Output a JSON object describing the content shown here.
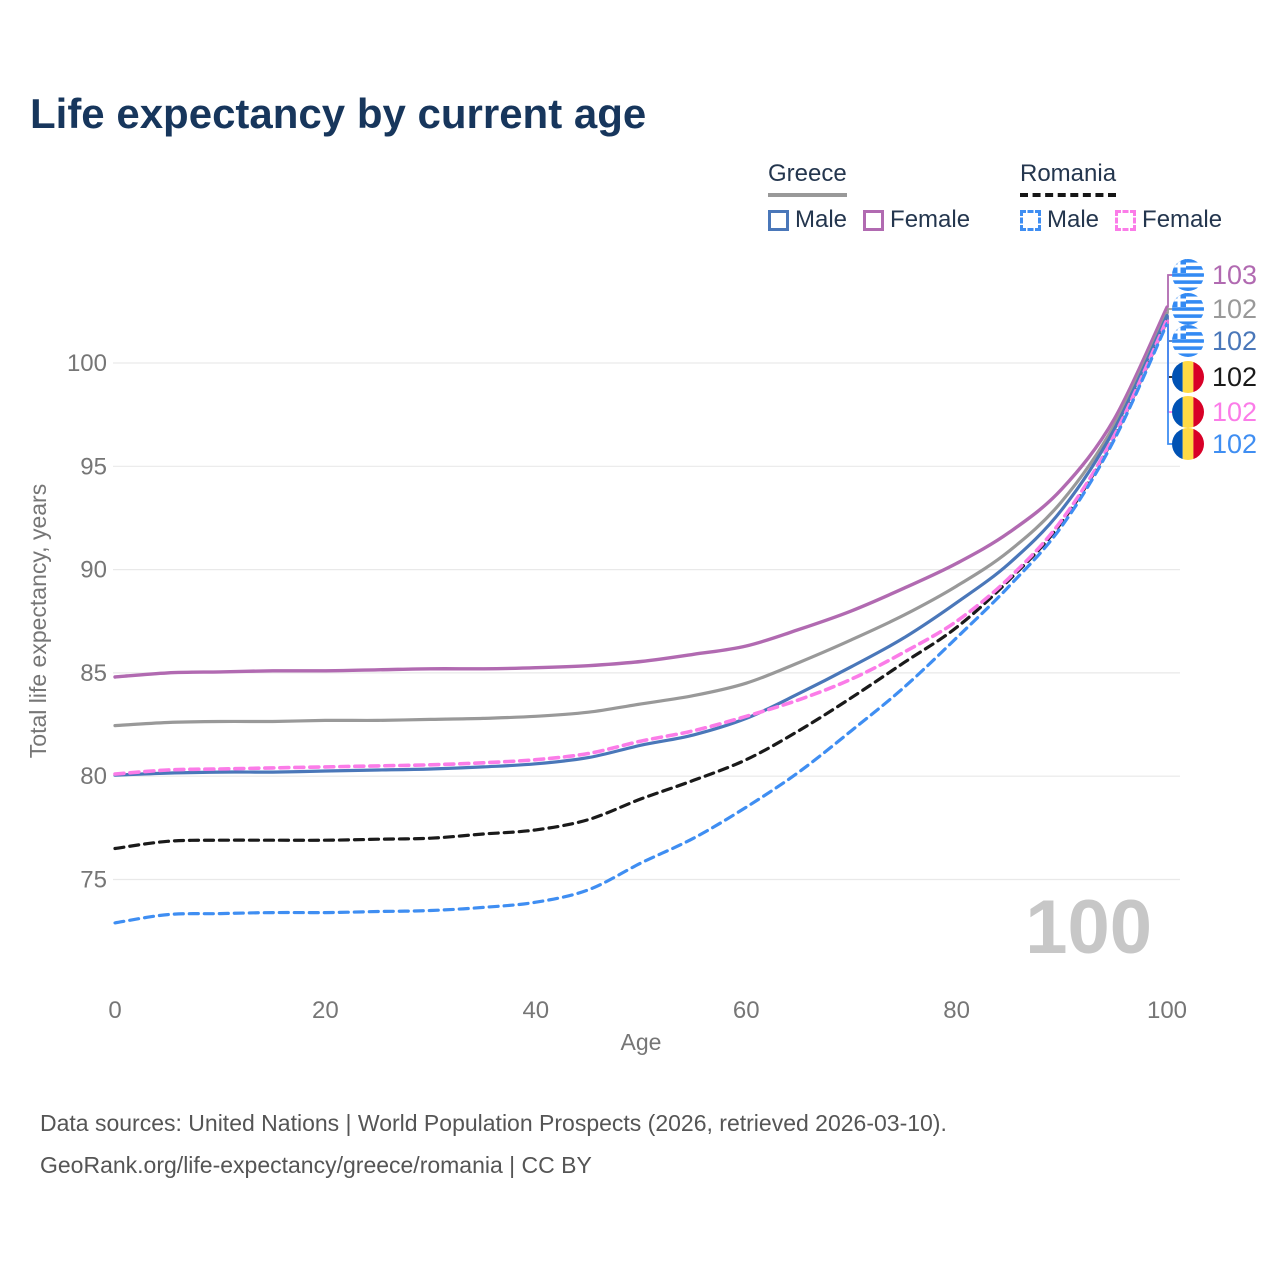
{
  "title": "Life expectancy by current age",
  "legend": {
    "groups": [
      {
        "country": "Greece",
        "items": [
          {
            "label": "Male"
          },
          {
            "label": "Female"
          }
        ]
      },
      {
        "country": "Romania",
        "items": [
          {
            "label": "Male"
          },
          {
            "label": "Female"
          }
        ]
      }
    ]
  },
  "watermark": "100",
  "colors": {
    "title": "#17365c",
    "axis_text": "#767676",
    "grid": "#e9e9e9",
    "watermark": "#c7c7c7",
    "footer_text": "#555555",
    "greece_female": "#b16ab1",
    "greece_total": "#999999",
    "greece_male": "#4a77b9",
    "romania_total": "#1a1a1a",
    "romania_female": "#fb7ce8",
    "romania_male": "#3f8ef2"
  },
  "chart_data": {
    "type": "line",
    "title": "Life expectancy by current age",
    "xlabel": "Age",
    "ylabel": "Total life expectancy, years",
    "x": [
      0,
      5,
      10,
      15,
      20,
      25,
      30,
      35,
      40,
      45,
      50,
      55,
      60,
      65,
      70,
      75,
      80,
      85,
      90,
      95,
      100
    ],
    "xticks": [
      0,
      20,
      40,
      60,
      80,
      100
    ],
    "yticks": [
      75,
      80,
      85,
      90,
      95,
      100
    ],
    "xlim": [
      0,
      100
    ],
    "ylim": [
      72,
      103.5
    ],
    "grid": true,
    "legend_position": "top-right",
    "series": [
      {
        "name": "Greece Female",
        "country": "Greece",
        "sex": "Female",
        "style": "solid",
        "color": "#b16ab1",
        "width": 3.4,
        "flag": "greece",
        "end_label": "103",
        "values": [
          84.8,
          85.0,
          85.05,
          85.1,
          85.1,
          85.15,
          85.2,
          85.2,
          85.25,
          85.35,
          85.55,
          85.9,
          86.3,
          87.1,
          88.0,
          89.1,
          90.3,
          91.8,
          93.9,
          97.3,
          102.7
        ]
      },
      {
        "name": "Greece Both sexes",
        "country": "Greece",
        "sex": "Both",
        "style": "solid",
        "color": "#999999",
        "width": 3.2,
        "flag": "greece",
        "end_label": "102",
        "values": [
          82.45,
          82.6,
          82.65,
          82.65,
          82.7,
          82.7,
          82.75,
          82.8,
          82.9,
          83.1,
          83.5,
          83.9,
          84.5,
          85.5,
          86.6,
          87.8,
          89.2,
          90.9,
          93.3,
          97.0,
          102.4
        ]
      },
      {
        "name": "Greece Male",
        "country": "Greece",
        "sex": "Male",
        "style": "solid",
        "color": "#4a77b9",
        "width": 3.2,
        "flag": "greece",
        "end_label": "102",
        "values": [
          80.05,
          80.15,
          80.2,
          80.2,
          80.25,
          80.3,
          80.35,
          80.45,
          80.6,
          80.9,
          81.5,
          82.0,
          82.8,
          84.0,
          85.3,
          86.7,
          88.4,
          90.3,
          92.9,
          96.8,
          102.3
        ]
      },
      {
        "name": "Romania Both sexes",
        "country": "Romania",
        "sex": "Both",
        "style": "dashed",
        "color": "#1a1a1a",
        "width": 3.2,
        "flag": "romania",
        "end_label": "102",
        "values": [
          76.5,
          76.85,
          76.9,
          76.9,
          76.9,
          76.95,
          77.0,
          77.2,
          77.4,
          77.9,
          78.9,
          79.8,
          80.8,
          82.2,
          83.8,
          85.5,
          87.2,
          89.5,
          92.3,
          96.45,
          102.05
        ]
      },
      {
        "name": "Romania Female",
        "country": "Romania",
        "sex": "Female",
        "style": "dashed",
        "color": "#fb7ce8",
        "width": 3.6,
        "flag": "romania",
        "end_label": "102",
        "values": [
          80.1,
          80.3,
          80.35,
          80.4,
          80.45,
          80.5,
          80.55,
          80.65,
          80.8,
          81.1,
          81.7,
          82.2,
          82.9,
          83.7,
          84.7,
          86.0,
          87.5,
          89.6,
          92.4,
          96.5,
          102.1
        ]
      },
      {
        "name": "Romania Male",
        "country": "Romania",
        "sex": "Male",
        "style": "dashed",
        "color": "#3f8ef2",
        "width": 3.2,
        "flag": "romania",
        "end_label": "102",
        "values": [
          72.9,
          73.3,
          73.35,
          73.4,
          73.4,
          73.45,
          73.5,
          73.65,
          73.9,
          74.5,
          75.8,
          77.0,
          78.5,
          80.2,
          82.2,
          84.3,
          86.7,
          89.2,
          92.1,
          96.3,
          101.9
        ]
      }
    ]
  },
  "footer": {
    "line1": "Data sources: United Nations | World Population Prospects (2026, retrieved 2026-03-10).",
    "line2": "GeoRank.org/life-expectancy/greece/romania | CC BY"
  }
}
